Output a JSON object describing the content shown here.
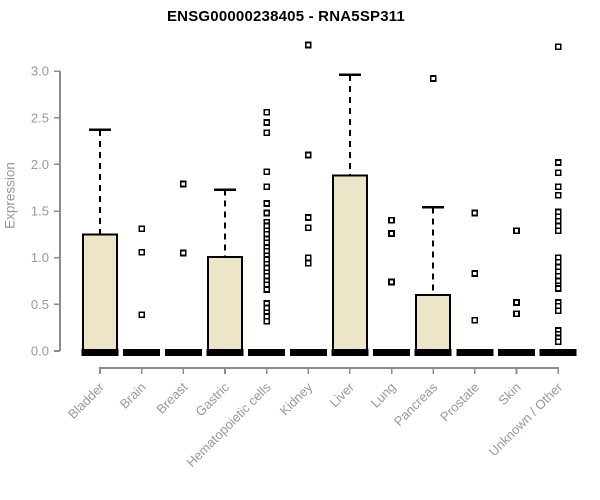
{
  "chart_data": {
    "type": "boxplot",
    "title": "ENSG00000238405 - RNA5SP311",
    "ylabel": "Expression",
    "xlabel": "",
    "ylim": [
      0,
      3.3
    ],
    "grid": false,
    "legend": null,
    "yticks": [
      "0.0",
      "0.5",
      "1.0",
      "1.5",
      "2.0",
      "2.5",
      "3.0"
    ],
    "categories": [
      "Bladder",
      "Brain",
      "Breast",
      "Gastric",
      "Hematopoietic cells",
      "Kidney",
      "Liver",
      "Lung",
      "Pancreas",
      "Prostate",
      "Skin",
      "Unknown / Other"
    ],
    "series": [
      {
        "category": "Bladder",
        "whisker_low": 0,
        "q1": 0,
        "median": 0,
        "q3": 1.25,
        "whisker_high": 2.37,
        "outliers": []
      },
      {
        "category": "Brain",
        "whisker_low": 0,
        "q1": 0,
        "median": 0,
        "q3": 0,
        "whisker_high": 0,
        "outliers": [
          1.31,
          1.06,
          0.39
        ]
      },
      {
        "category": "Breast",
        "whisker_low": 0,
        "q1": 0,
        "median": 0,
        "q3": 0,
        "whisker_high": 0,
        "outliers": [
          1.79,
          1.05
        ]
      },
      {
        "category": "Gastric",
        "whisker_low": 0,
        "q1": 0,
        "median": 0,
        "q3": 1.01,
        "whisker_high": 1.73,
        "outliers": []
      },
      {
        "category": "Hematopoietic cells",
        "whisker_low": 0,
        "q1": 0,
        "median": 0,
        "q3": 0,
        "whisker_high": 0,
        "outliers": [
          2.56,
          2.45,
          2.34,
          1.92,
          1.76,
          1.58,
          1.48,
          1.38,
          1.34,
          1.29,
          1.25,
          1.2,
          1.16,
          1.11,
          1.07,
          1.02,
          0.98,
          0.93,
          0.89,
          0.84,
          0.8,
          0.75,
          0.71,
          0.66,
          0.51,
          0.46,
          0.41,
          0.37,
          0.32
        ]
      },
      {
        "category": "Kidney",
        "whisker_low": 0,
        "q1": 0,
        "median": 0,
        "q3": 0,
        "whisker_high": 0,
        "outliers": [
          3.28,
          2.1,
          1.43,
          1.32,
          1.0,
          0.94
        ]
      },
      {
        "category": "Liver",
        "whisker_low": 0,
        "q1": 0,
        "median": 0,
        "q3": 1.88,
        "whisker_high": 2.96,
        "outliers": []
      },
      {
        "category": "Lung",
        "whisker_low": 0,
        "q1": 0,
        "median": 0,
        "q3": 0,
        "whisker_high": 0,
        "outliers": [
          1.4,
          1.26,
          0.74
        ]
      },
      {
        "category": "Pancreas",
        "whisker_low": 0,
        "q1": 0,
        "median": 0,
        "q3": 0.6,
        "whisker_high": 1.54,
        "outliers": [
          2.92
        ]
      },
      {
        "category": "Prostate",
        "whisker_low": 0,
        "q1": 0,
        "median": 0,
        "q3": 0,
        "whisker_high": 0,
        "outliers": [
          1.48,
          0.83,
          0.33
        ]
      },
      {
        "category": "Skin",
        "whisker_low": 0,
        "q1": 0,
        "median": 0,
        "q3": 0,
        "whisker_high": 0,
        "outliers": [
          1.29,
          0.52,
          0.4
        ]
      },
      {
        "category": "Unknown / Other",
        "whisker_low": 0,
        "q1": 0,
        "median": 0,
        "q3": 0,
        "whisker_high": 0,
        "outliers": [
          3.26,
          2.02,
          1.91,
          1.76,
          1.67,
          1.49,
          1.44,
          1.39,
          1.34,
          1.29,
          1.0,
          0.95,
          0.9,
          0.85,
          0.8,
          0.75,
          0.7,
          0.67,
          0.52,
          0.48,
          0.43,
          0.22,
          0.18,
          0.14,
          0.1
        ]
      }
    ],
    "colors": {
      "background": "#ffffff",
      "box_fill": "#ECE5C8",
      "box_border": "#000000",
      "median": "#000000",
      "whisker": "#000000",
      "outlier_stroke": "#000000",
      "outlier_fill": "#ffffff",
      "axis": "#8C8C8C",
      "tick_label": "#9399A3",
      "title": "#000000"
    }
  }
}
